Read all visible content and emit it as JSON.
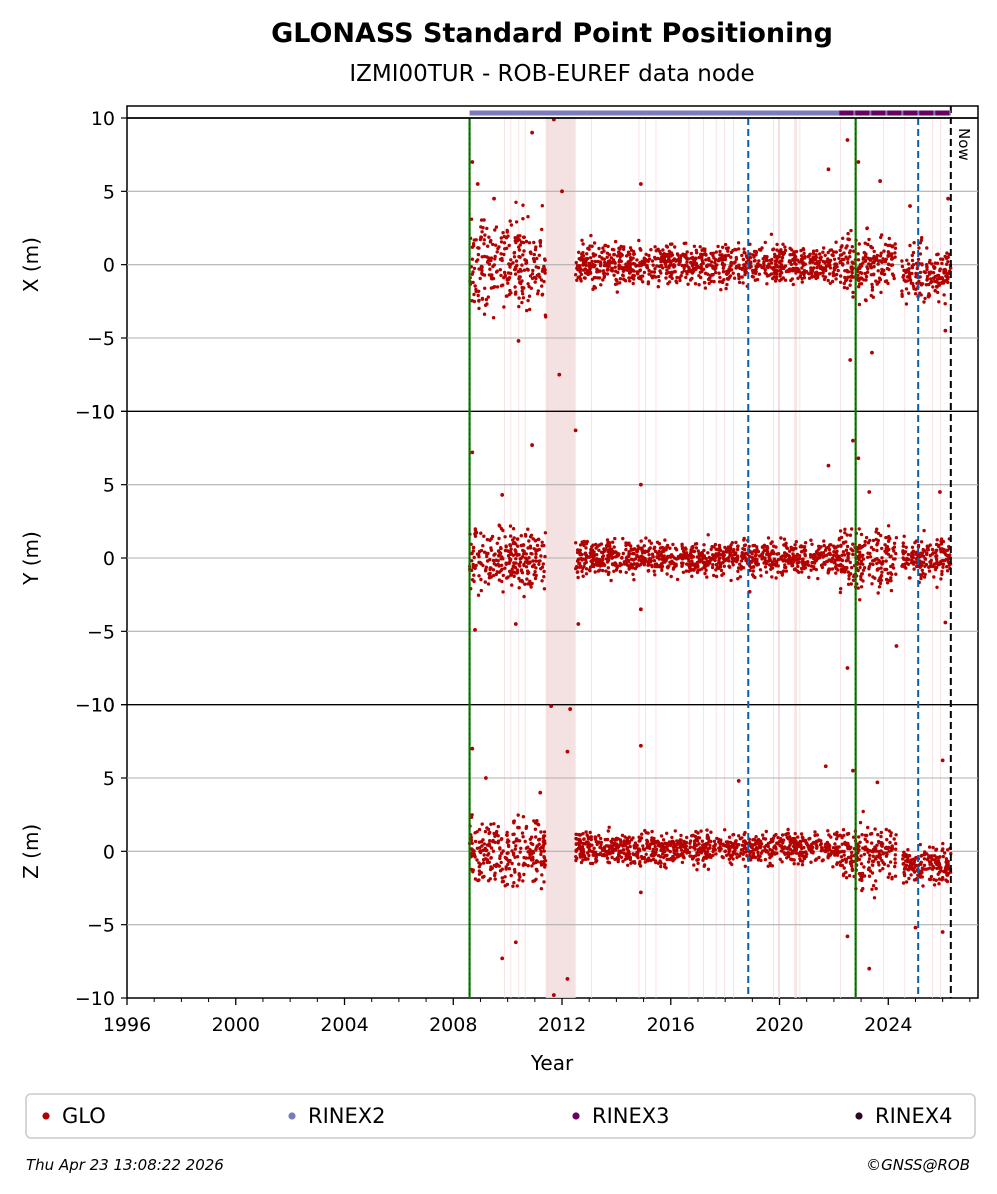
{
  "chart_data": {
    "type": "scatter",
    "title": "GLONASS Standard Point Positioning",
    "subtitle": "IZMI00TUR - ROB-EUREF data node",
    "xlabel": "Year",
    "xlim": [
      1996,
      2027.3
    ],
    "x_ticks": [
      "1996",
      "2000",
      "2004",
      "2008",
      "2012",
      "2016",
      "2020",
      "2024"
    ],
    "grid": "horizontal",
    "now_label": "Now",
    "markers": {
      "data_start": 2008.6,
      "green_lines": [
        2008.6,
        2022.8
      ],
      "blue_dashed_lines": [
        2018.85,
        2025.1
      ],
      "now_line": 2026.3
    },
    "gap_shading": [
      [
        2011.4,
        2012.5
      ]
    ],
    "rinex_bars": {
      "RINEX2": [
        2008.6,
        2026.3
      ],
      "RINEX3": [
        2022.2,
        2026.3
      ]
    },
    "panels": [
      {
        "ylabel": "X (m)",
        "ylim": [
          -10,
          10
        ],
        "y_ticks": [
          "10",
          "5",
          "0",
          "−5",
          "−10"
        ],
        "segments": [
          {
            "from": 2008.6,
            "to": 2011.4,
            "mean": 0.0,
            "spread": 3.2
          },
          {
            "from": 2012.5,
            "to": 2022.2,
            "mean": 0.0,
            "spread": 1.5
          },
          {
            "from": 2022.2,
            "to": 2024.3,
            "mean": 0.0,
            "spread": 2.4
          },
          {
            "from": 2024.5,
            "to": 2026.3,
            "mean": -0.6,
            "spread": 1.9
          }
        ],
        "outliers": [
          [
            2008.7,
            7.0
          ],
          [
            2008.9,
            5.5
          ],
          [
            2009.5,
            4.5
          ],
          [
            2010.4,
            -5.2
          ],
          [
            2010.9,
            9.0
          ],
          [
            2011.7,
            9.9
          ],
          [
            2011.9,
            -7.5
          ],
          [
            2012.0,
            5.0
          ],
          [
            2014.9,
            5.5
          ],
          [
            2021.8,
            6.5
          ],
          [
            2022.5,
            8.5
          ],
          [
            2022.6,
            -6.5
          ],
          [
            2022.9,
            7.0
          ],
          [
            2023.4,
            -6.0
          ],
          [
            2023.7,
            5.7
          ],
          [
            2024.8,
            4.0
          ],
          [
            2026.2,
            4.5
          ],
          [
            2026.1,
            -4.5
          ]
        ]
      },
      {
        "ylabel": "Y (m)",
        "ylim": [
          -10,
          10
        ],
        "y_ticks": [
          "10",
          "5",
          "0",
          "−5",
          "−10"
        ],
        "segments": [
          {
            "from": 2008.6,
            "to": 2011.4,
            "mean": 0.0,
            "spread": 2.4
          },
          {
            "from": 2012.5,
            "to": 2022.2,
            "mean": 0.0,
            "spread": 1.3
          },
          {
            "from": 2022.2,
            "to": 2024.3,
            "mean": 0.0,
            "spread": 2.2
          },
          {
            "from": 2024.5,
            "to": 2026.3,
            "mean": -0.1,
            "spread": 1.6
          }
        ],
        "outliers": [
          [
            2008.7,
            7.2
          ],
          [
            2008.8,
            -4.9
          ],
          [
            2009.8,
            4.3
          ],
          [
            2010.3,
            -4.5
          ],
          [
            2010.9,
            7.7
          ],
          [
            2012.5,
            8.7
          ],
          [
            2012.6,
            -4.5
          ],
          [
            2014.9,
            5.0
          ],
          [
            2014.9,
            -3.5
          ],
          [
            2018.9,
            -2.3
          ],
          [
            2021.8,
            6.3
          ],
          [
            2022.5,
            -7.5
          ],
          [
            2022.7,
            8.0
          ],
          [
            2022.9,
            6.8
          ],
          [
            2023.3,
            4.5
          ],
          [
            2024.3,
            -6.0
          ],
          [
            2025.9,
            4.5
          ],
          [
            2026.1,
            -4.4
          ]
        ]
      },
      {
        "ylabel": "Z (m)",
        "ylim": [
          -10,
          10
        ],
        "y_ticks": [
          "10",
          "5",
          "0",
          "−5",
          "−10"
        ],
        "segments": [
          {
            "from": 2008.6,
            "to": 2011.4,
            "mean": 0.0,
            "spread": 2.6
          },
          {
            "from": 2012.5,
            "to": 2022.2,
            "mean": 0.2,
            "spread": 1.2
          },
          {
            "from": 2022.2,
            "to": 2024.3,
            "mean": -0.2,
            "spread": 2.4
          },
          {
            "from": 2024.5,
            "to": 2026.3,
            "mean": -0.9,
            "spread": 1.4
          }
        ],
        "outliers": [
          [
            2008.7,
            7.0
          ],
          [
            2009.2,
            5.0
          ],
          [
            2009.8,
            -7.3
          ],
          [
            2010.3,
            -6.2
          ],
          [
            2011.2,
            4.0
          ],
          [
            2011.6,
            9.9
          ],
          [
            2012.2,
            6.8
          ],
          [
            2012.3,
            9.7
          ],
          [
            2011.7,
            -9.8
          ],
          [
            2012.2,
            -8.7
          ],
          [
            2014.9,
            7.2
          ],
          [
            2014.9,
            -2.8
          ],
          [
            2018.5,
            4.8
          ],
          [
            2021.7,
            5.8
          ],
          [
            2022.5,
            -5.8
          ],
          [
            2022.7,
            5.5
          ],
          [
            2023.3,
            -8.0
          ],
          [
            2023.6,
            4.7
          ],
          [
            2025.0,
            -5.2
          ],
          [
            2026.0,
            6.2
          ],
          [
            2026.0,
            -5.5
          ]
        ]
      }
    ],
    "legend": [
      {
        "label": "GLO",
        "color": "#b30000"
      },
      {
        "label": "RINEX2",
        "color": "#7b7bbd"
      },
      {
        "label": "RINEX3",
        "color": "#6b0063"
      },
      {
        "label": "RINEX4",
        "color": "#2b0a1f"
      }
    ]
  },
  "footer": {
    "timestamp": "Thu Apr 23 13:08:22 2026",
    "credit": "©GNSS@ROB"
  },
  "colors": {
    "glo": "#b30000",
    "gap": "#f2dcdc",
    "green": "#008000",
    "blue": "#0a5fa8",
    "grid": "#b0b0b0"
  }
}
